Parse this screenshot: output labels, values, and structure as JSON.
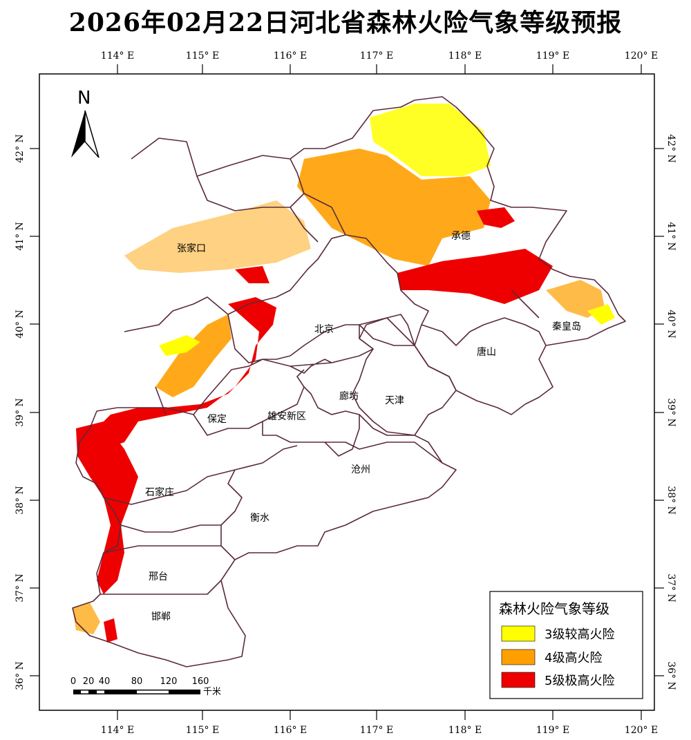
{
  "title": "2026年02月22日河北省森林火险气象等级预报",
  "longitude_ticks": [
    "114° E",
    "115° E",
    "116° E",
    "117° E",
    "118° E",
    "119° E",
    "120° E"
  ],
  "latitude_ticks": [
    "42° N",
    "41° N",
    "40° N",
    "39° N",
    "38° N",
    "37° N",
    "36° N"
  ],
  "north_arrow_label": "N",
  "cities": [
    {
      "id": "zhangjiakou",
      "name": "张家口"
    },
    {
      "id": "chengde",
      "name": "承德"
    },
    {
      "id": "beijing",
      "name": "北京"
    },
    {
      "id": "qinhuangdao",
      "name": "秦皇岛"
    },
    {
      "id": "tangshan",
      "name": "唐山"
    },
    {
      "id": "langfang",
      "name": "廊坊"
    },
    {
      "id": "tianjin",
      "name": "天津"
    },
    {
      "id": "baoding",
      "name": "保定"
    },
    {
      "id": "xiongan",
      "name": "雄安新区"
    },
    {
      "id": "cangzhou",
      "name": "沧州"
    },
    {
      "id": "shijiazhuang",
      "name": "石家庄"
    },
    {
      "id": "hengshui",
      "name": "衡水"
    },
    {
      "id": "xingtai",
      "name": "邢台"
    },
    {
      "id": "handan",
      "name": "邯郸"
    }
  ],
  "legend": {
    "title": "森林火险气象等级",
    "items": [
      {
        "label": "3级较高火险",
        "color": "#ffff00"
      },
      {
        "label": "4级高火险",
        "color": "#ffa000"
      },
      {
        "label": "5级极高火险",
        "color": "#ee0000"
      }
    ]
  },
  "scale_bar": {
    "ticks": [
      "0",
      "20",
      "40",
      "80",
      "120",
      "160"
    ],
    "unit": "千米"
  },
  "colors": {
    "boundary": "#5a2a3a",
    "level3": "#ffff00",
    "level4": "#ffa000",
    "level5": "#ee0000"
  }
}
